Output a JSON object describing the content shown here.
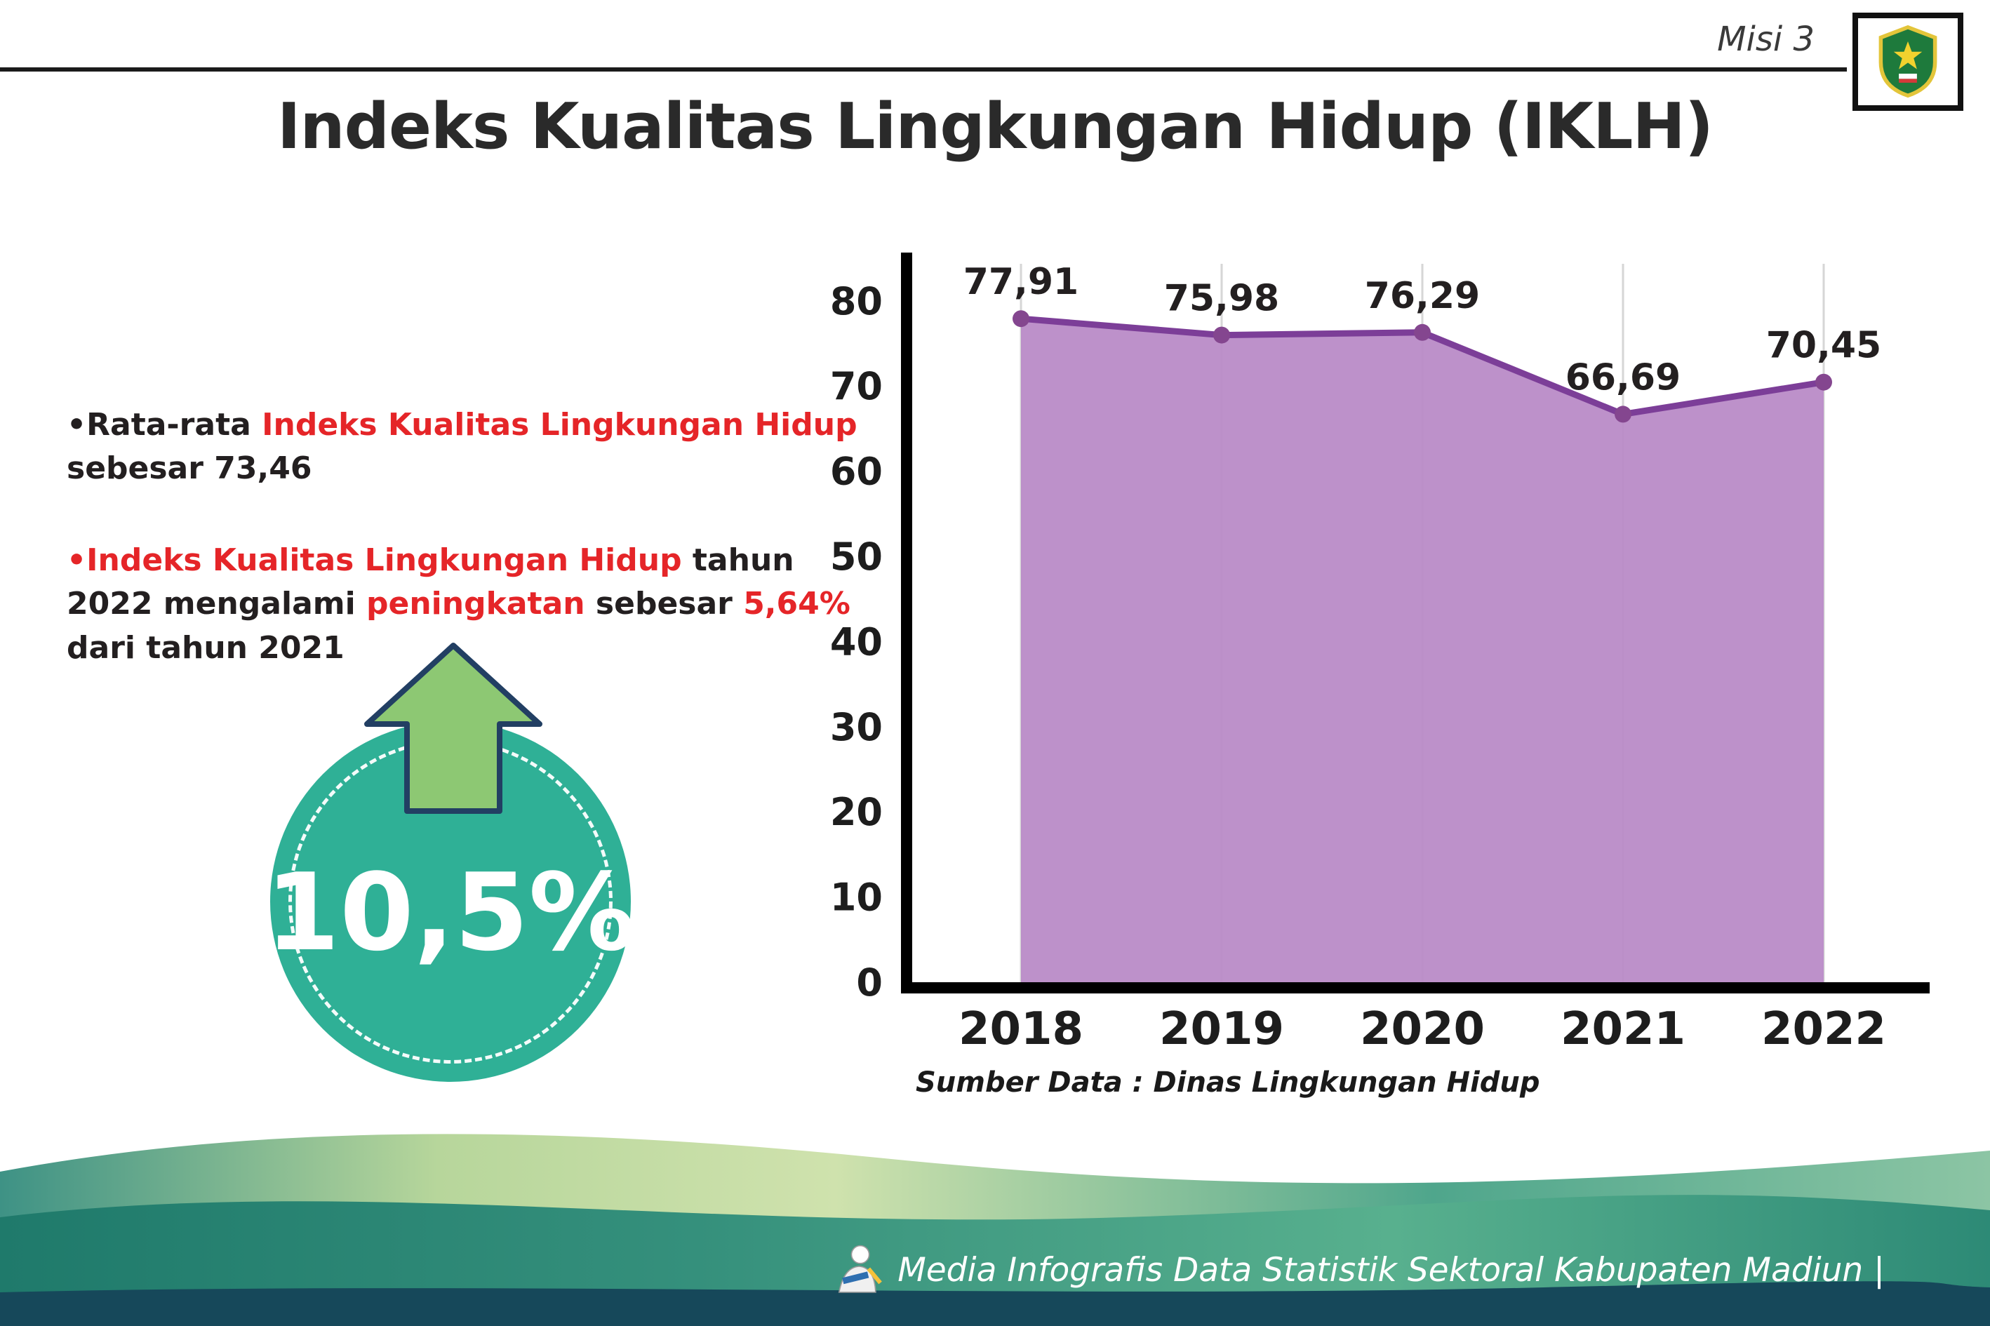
{
  "header": {
    "misi": "Misi 3",
    "title": "Indeks Kualitas Lingkungan Hidup (IKLH)",
    "logo_name": "Kabupaten Madiun"
  },
  "bullets": {
    "marker": "•",
    "b1": [
      {
        "t": "Rata-rata "
      },
      {
        "t": "Indeks Kualitas Lingkungan Hidup"
      },
      {
        "t": " sebesar 73,46"
      }
    ],
    "b2": [
      {
        "t": "Indeks Kualitas Lingkungan Hidup"
      },
      {
        "t": " tahun 2022 mengalami "
      },
      {
        "t": "peningkatan"
      },
      {
        "t": " sebesar "
      },
      {
        "t": "5,64%"
      },
      {
        "t": " dari tahun 2021"
      }
    ]
  },
  "badge": {
    "value": "10,5%"
  },
  "chart_data": {
    "type": "area",
    "title": "",
    "categories": [
      "2018",
      "2019",
      "2020",
      "2021",
      "2022"
    ],
    "values": [
      77.91,
      75.98,
      76.29,
      66.69,
      70.45
    ],
    "point_labels": [
      "77,91",
      "75,98",
      "76,29",
      "66,69",
      "70,45"
    ],
    "yticks": [
      0,
      10,
      20,
      30,
      40,
      50,
      60,
      70,
      80
    ],
    "ylim": [
      0,
      80
    ],
    "grid": "vertical",
    "legend": "none",
    "source": "Sumber Data : Dinas Lingkungan Hidup"
  },
  "footer": {
    "text": "Media Infografis Data Statistik Sektoral Kabupaten Madiun |"
  },
  "colors": {
    "accent_red": "#e52528",
    "badge_teal": "#2fb096",
    "arrow_green": "#8dc873",
    "area_fill": "#b98bc7",
    "line_purple": "#7c3e98",
    "footer_dark": "#16485a"
  }
}
